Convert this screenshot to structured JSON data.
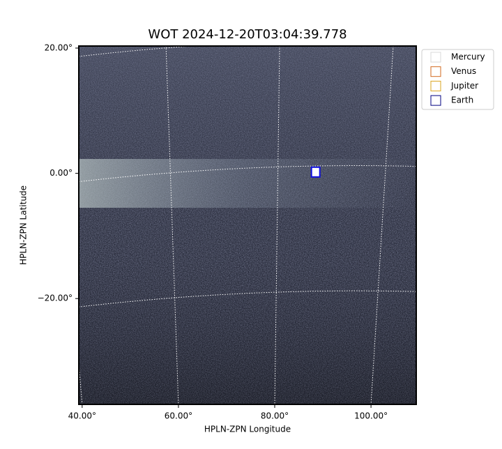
{
  "chart_data": {
    "type": "image",
    "title": "WOT 2024-12-20T03:04:39.778",
    "x_label": "HPLN-ZPN Longitude",
    "y_label": "HPLN-ZPN Latitude",
    "xlim": [
      39.3,
      109.4
    ],
    "ylim": [
      -36.9,
      20.33
    ],
    "xticks": [
      {
        "value": 40,
        "label": "40.00°"
      },
      {
        "value": 60,
        "label": "60.00°"
      },
      {
        "value": 80,
        "label": "80.00°"
      },
      {
        "value": 100,
        "label": "100.00°"
      }
    ],
    "yticks": [
      {
        "value": 20,
        "label": "20.00°"
      },
      {
        "value": 0,
        "label": "0.00°"
      },
      {
        "value": -20,
        "label": "−20.00°"
      }
    ],
    "grid": true,
    "legend": "upper right outside",
    "series": [
      {
        "name": "Mercury",
        "color": "#d8d8d8",
        "x": [],
        "y": []
      },
      {
        "name": "Venus",
        "color": "#d2691e",
        "x": [],
        "y": []
      },
      {
        "name": "Jupiter",
        "color": "#daa520",
        "x": [],
        "y": []
      },
      {
        "name": "Earth",
        "color": "#000080",
        "x": [
          88.5
        ],
        "y": [
          0.2
        ]
      }
    ]
  }
}
